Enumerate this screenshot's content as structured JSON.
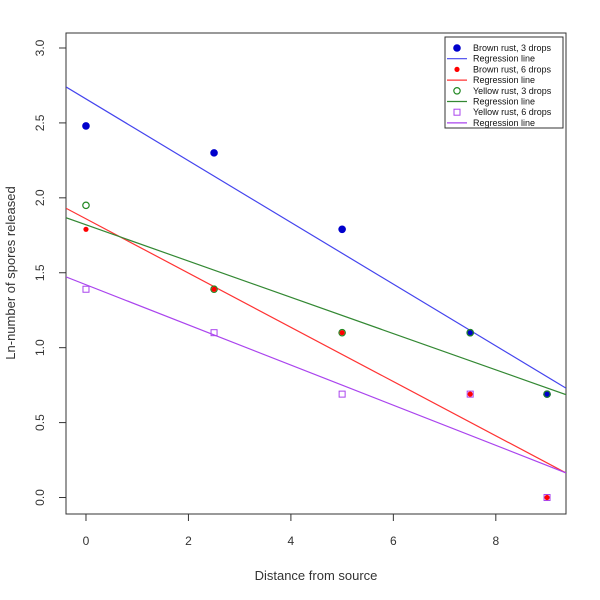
{
  "chart_data": {
    "type": "scatter",
    "title": "",
    "xlabel": "Distance from source",
    "ylabel": "Ln-number of spores released",
    "xlim": [
      -0.39,
      9.37
    ],
    "ylim": [
      -0.11,
      3.1
    ],
    "xticks": [
      0,
      2,
      4,
      6,
      8
    ],
    "yticks": [
      "0.0",
      "0.5",
      "1.0",
      "1.5",
      "2.0",
      "2.5",
      "3.0"
    ],
    "legend_position": "top-right",
    "series": [
      {
        "name": "Brown rust, 3 drops",
        "marker": "filled-circle",
        "color": "#0000cc",
        "x": [
          0,
          2.5,
          5,
          7.5,
          9
        ],
        "y": [
          2.48,
          2.3,
          1.79,
          1.1,
          0.69
        ],
        "line_label": "Regression line",
        "line_color": "#4444ee",
        "intercept": 2.66,
        "slope": -0.206
      },
      {
        "name": "Brown rust, 6 drops",
        "marker": "small-filled-circle",
        "color": "#ff0000",
        "x": [
          0,
          2.5,
          5,
          7.5,
          9
        ],
        "y": [
          1.79,
          1.39,
          1.1,
          0.69,
          0.0
        ],
        "line_label": "Regression line",
        "line_color": "#ff3333",
        "intercept": 1.86,
        "slope": -0.181
      },
      {
        "name": "Yellow rust, 3 drops",
        "marker": "open-circle",
        "color": "#228822",
        "x": [
          0,
          2.5,
          5,
          7.5,
          9
        ],
        "y": [
          1.95,
          1.39,
          1.1,
          1.1,
          0.69
        ],
        "line_label": "Regression line",
        "line_color": "#338833",
        "intercept": 1.82,
        "slope": -0.121
      },
      {
        "name": "Yellow rust, 6 drops",
        "marker": "open-square",
        "color": "#aa44ee",
        "x": [
          0,
          2.5,
          5,
          7.5,
          9
        ],
        "y": [
          1.39,
          1.1,
          0.69,
          0.69,
          0.0
        ],
        "line_label": "Regression line",
        "line_color": "#aa44ee",
        "intercept": 1.42,
        "slope": -0.134
      }
    ]
  }
}
